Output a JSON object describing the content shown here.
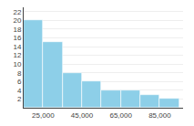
{
  "chart_data": {
    "type": "histogram",
    "bins": [
      15000,
      25000,
      35000,
      45000,
      55000,
      65000,
      75000,
      85000,
      95000
    ],
    "values": [
      20,
      15,
      8,
      6,
      4,
      4,
      3,
      2
    ],
    "color": "#8dcfe8",
    "xlim": [
      15000,
      97000
    ],
    "xticks": [
      {
        "value": 25000,
        "label": "25,000"
      },
      {
        "value": 45000,
        "label": "45,000"
      },
      {
        "value": 65000,
        "label": "65,000"
      },
      {
        "value": 85000,
        "label": "85,000"
      }
    ],
    "ylim": [
      0,
      23
    ],
    "yticks": [
      2,
      4,
      6,
      8,
      10,
      12,
      14,
      16,
      18,
      20,
      22
    ],
    "grid": "y"
  }
}
